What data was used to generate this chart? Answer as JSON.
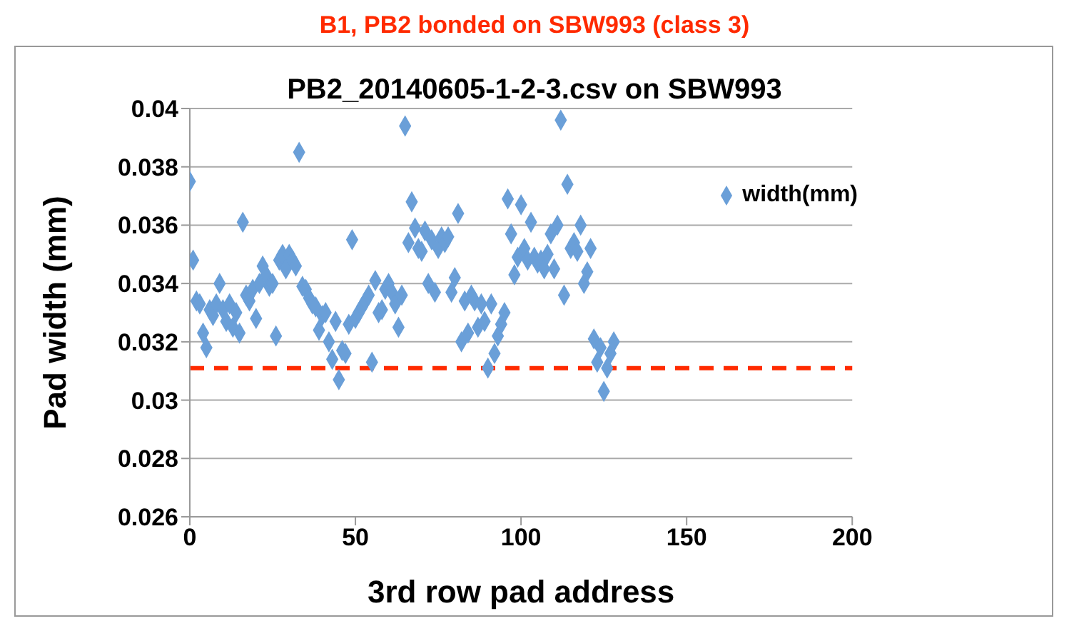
{
  "chart_data": {
    "type": "scatter",
    "title": "PB2_20140605-1-2-3.csv on SBW993",
    "xlabel": "3rd row pad address",
    "ylabel": "Pad width (mm)",
    "annotations": [
      "B1, PB2 bonded on SBW993 (class 3)"
    ],
    "x": [
      0,
      1,
      2,
      3,
      4,
      5,
      6,
      7,
      8,
      9,
      10,
      11,
      12,
      13,
      14,
      15,
      16,
      17,
      18,
      19,
      20,
      21,
      22,
      23,
      24,
      25,
      26,
      27,
      28,
      29,
      30,
      31,
      32,
      33,
      34,
      35,
      36,
      37,
      38,
      39,
      40,
      41,
      42,
      43,
      44,
      45,
      46,
      47,
      48,
      49,
      50,
      51,
      52,
      53,
      54,
      55,
      56,
      57,
      58,
      59,
      60,
      61,
      62,
      63,
      64,
      65,
      66,
      67,
      68,
      69,
      70,
      71,
      72,
      73,
      74,
      75,
      76,
      77,
      78,
      79,
      80,
      81,
      82,
      83,
      84,
      85,
      86,
      87,
      88,
      89,
      90,
      91,
      92,
      93,
      94,
      95,
      96,
      97,
      98,
      99,
      100,
      101,
      102,
      103,
      104,
      105,
      106,
      107,
      108,
      109,
      110,
      111,
      112,
      113,
      114,
      115,
      116,
      117,
      118,
      119,
      120,
      121,
      122,
      123,
      124,
      125,
      126,
      127,
      128
    ],
    "series": [
      {
        "name": "width(mm)",
        "color": "#6a9fd8",
        "values": [
          0.0375,
          0.0348,
          0.0334,
          0.0333,
          0.0323,
          0.0318,
          0.0331,
          0.0329,
          0.0333,
          0.034,
          0.0331,
          0.0327,
          0.0333,
          0.0325,
          0.033,
          0.0323,
          0.0361,
          0.0336,
          0.0334,
          0.0338,
          0.0328,
          0.034,
          0.0346,
          0.0343,
          0.0339,
          0.034,
          0.0322,
          0.0348,
          0.035,
          0.0345,
          0.035,
          0.0348,
          0.0346,
          0.0385,
          0.0339,
          0.0338,
          0.0335,
          0.0333,
          0.0332,
          0.0324,
          0.0329,
          0.033,
          0.032,
          0.0314,
          0.0327,
          0.0307,
          0.0317,
          0.0316,
          0.0326,
          0.0355,
          0.0328,
          0.033,
          0.0332,
          0.0334,
          0.0336,
          0.0313,
          0.0341,
          0.033,
          0.0331,
          0.0338,
          0.034,
          0.0337,
          0.0333,
          0.0325,
          0.0336,
          0.0394,
          0.0354,
          0.0368,
          0.0359,
          0.0352,
          0.0351,
          0.0358,
          0.034,
          0.0355,
          0.0337,
          0.0352,
          0.0356,
          0.0354,
          0.0356,
          0.0337,
          0.0342,
          0.0364,
          0.032,
          0.0334,
          0.0323,
          0.0336,
          0.0334,
          0.0325,
          0.0333,
          0.0327,
          0.0311,
          0.0333,
          0.0316,
          0.0322,
          0.0326,
          0.033,
          0.0369,
          0.0357,
          0.0343,
          0.0349,
          0.0367,
          0.0352,
          0.0348,
          0.0361,
          0.0349,
          0.0347,
          0.0348,
          0.0345,
          0.035,
          0.0357,
          0.0345,
          0.036,
          0.0396,
          0.0336,
          0.0374,
          0.0352,
          0.0354,
          0.0351,
          0.036,
          0.034,
          0.0344,
          0.0352,
          0.0321,
          0.0313,
          0.0318,
          0.0303,
          0.0311,
          0.0316,
          0.032
        ]
      }
    ],
    "xlim": [
      0,
      200
    ],
    "xticks": [
      0,
      50,
      100,
      150,
      200
    ],
    "ylim": [
      0.026,
      0.04
    ],
    "yticks": [
      0.026,
      0.028,
      0.03,
      0.032,
      0.034,
      0.036,
      0.038,
      0.04
    ],
    "ref_lines": [
      {
        "axis": "y",
        "value": 0.0311,
        "color": "#ff2a00",
        "line_style": "dashed"
      }
    ],
    "grid": "y",
    "legend": "top right",
    "marker": "diamond"
  }
}
